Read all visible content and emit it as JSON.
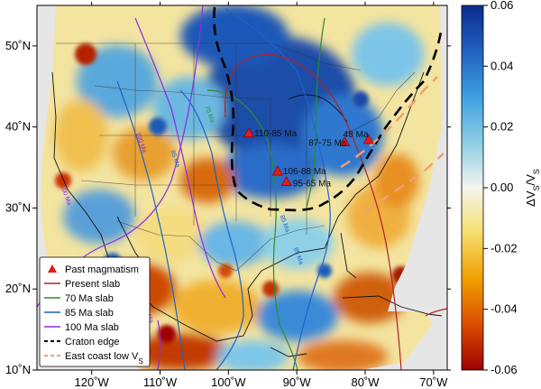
{
  "map": {
    "lon_range": [
      -128,
      -68
    ],
    "lat_range": [
      10,
      55
    ],
    "x_ticks": [
      "120˚W",
      "110˚W",
      "100˚W",
      "90˚W",
      "80˚W",
      "70˚W"
    ],
    "x_tick_values": [
      -120,
      -110,
      -100,
      -90,
      -80,
      -70
    ],
    "y_ticks": [
      "10˚N",
      "20˚N",
      "30˚N",
      "40˚N",
      "50˚N"
    ],
    "y_tick_values": [
      10,
      20,
      30,
      40,
      50
    ]
  },
  "colorbar": {
    "label": "ΔVS/VS",
    "label_parts": {
      "delta": "ΔV",
      "s1": "S",
      "slash": "/V",
      "s2": "S"
    },
    "range": [
      -0.06,
      0.06
    ],
    "ticks": [
      "0.06",
      "0.04",
      "0.02",
      "0.00",
      "-0.02",
      "-0.04",
      "-0.06"
    ],
    "tick_values": [
      0.06,
      0.04,
      0.02,
      0.0,
      -0.02,
      -0.04,
      -0.06
    ],
    "colors": [
      "#9e0000",
      "#d94a00",
      "#f0a000",
      "#f5e070",
      "#f4f4ee",
      "#8fd0e6",
      "#3f9fe0",
      "#1f5fc0",
      "#0a2c8c"
    ]
  },
  "magmatism_points": [
    {
      "label": "110-85 Ma",
      "lon": -97,
      "lat": 39.2
    },
    {
      "label": "106-88 Ma",
      "lon": -92.8,
      "lat": 34.5
    },
    {
      "label": "95-65 Ma",
      "lon": -91.5,
      "lat": 33.2
    },
    {
      "label": "87-75 Ma",
      "lon": -83,
      "lat": 38.1
    },
    {
      "label": "48 Ma",
      "lon": -79.5,
      "lat": 38.4
    }
  ],
  "slab_labels": [
    {
      "text": "70 Ma",
      "lon": -103,
      "lat": 41.5,
      "series": "70 Ma slab"
    },
    {
      "text": "85 Ma",
      "lon": -108,
      "lat": 36.0,
      "series": "85 Ma slab"
    },
    {
      "text": "100 Ma",
      "lon": -113,
      "lat": 38.0,
      "series": "100 Ma slab"
    },
    {
      "text": "100 Ma",
      "lon": -124,
      "lat": 31.5,
      "series": "100 Ma slab"
    },
    {
      "text": "85 Ma",
      "lon": -92,
      "lat": 28.0,
      "series": "85 Ma slab"
    },
    {
      "text": "85 Ma",
      "lon": -90,
      "lat": 24.0,
      "series": "85 Ma slab"
    },
    {
      "text": "100 Ma",
      "lon": -112,
      "lat": 17.0,
      "series": "100 Ma slab"
    }
  ],
  "legend": {
    "items": [
      {
        "label": "Past magmatism",
        "symbol": "triangle",
        "color": "#e21b1b"
      },
      {
        "label": "Present slab",
        "symbol": "line",
        "color": "#b22222"
      },
      {
        "label": "70 Ma slab",
        "symbol": "line",
        "color": "#2e8b2e"
      },
      {
        "label": "85 Ma slab",
        "symbol": "line",
        "color": "#1c63c9"
      },
      {
        "label": "100 Ma slab",
        "symbol": "line",
        "color": "#8a2be2"
      },
      {
        "label": "Craton edge",
        "symbol": "dash",
        "color": "#000000"
      },
      {
        "label": "East coast low VS",
        "symbol": "dash",
        "color": "#f0a070",
        "main": "East coast low V",
        "sub": "S"
      }
    ]
  },
  "colors": {
    "ocean_mask": "#e6e6e6",
    "frame": "#000000",
    "craton_edge": "#000000",
    "east_coast_low": "#f0a070",
    "magmatism": "#e21b1b"
  }
}
